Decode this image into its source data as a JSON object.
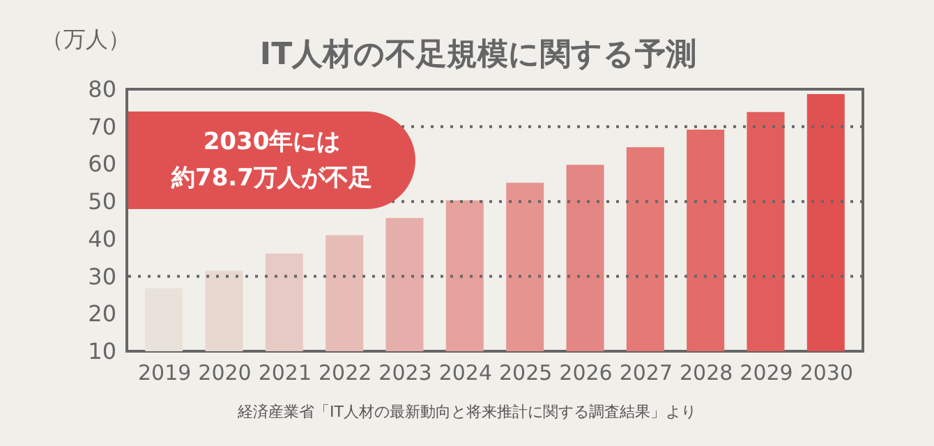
{
  "chart_data": {
    "type": "bar",
    "title": "IT人材の不足規模に関する予測",
    "ylabel": "（万人）",
    "categories": [
      "2019",
      "2020",
      "2021",
      "2022",
      "2023",
      "2024",
      "2025",
      "2026",
      "2027",
      "2028",
      "2029",
      "2030"
    ],
    "values": [
      26.8,
      31.5,
      36.1,
      41,
      45.6,
      50.3,
      55,
      59.8,
      64.5,
      69.2,
      73.9,
      78.7
    ],
    "colors": [
      "#e8e2da",
      "#e8d8d0",
      "#e7cac4",
      "#e7bcb7",
      "#e6aeaa",
      "#e6a19d",
      "#e59490",
      "#e48683",
      "#e47976",
      "#e36b69",
      "#e25e5c",
      "#e05252"
    ],
    "ylim": [
      10,
      80
    ],
    "yticks": [
      10,
      20,
      30,
      40,
      50,
      60,
      70,
      80
    ],
    "grid": false,
    "ref_lines": [
      {
        "axis": "y",
        "value": 30,
        "color": "#666666",
        "line_style": "dotted"
      },
      {
        "axis": "y",
        "value": 50,
        "color": "#666666",
        "line_style": "dotted"
      },
      {
        "axis": "y",
        "value": 70,
        "color": "#666666",
        "line_style": "dotted"
      }
    ],
    "annotations": [
      "2030年には",
      "約78.7万人が不足",
      "経済産業省「IT人材の最新動向と将来推計に関する調査結果」より"
    ]
  }
}
